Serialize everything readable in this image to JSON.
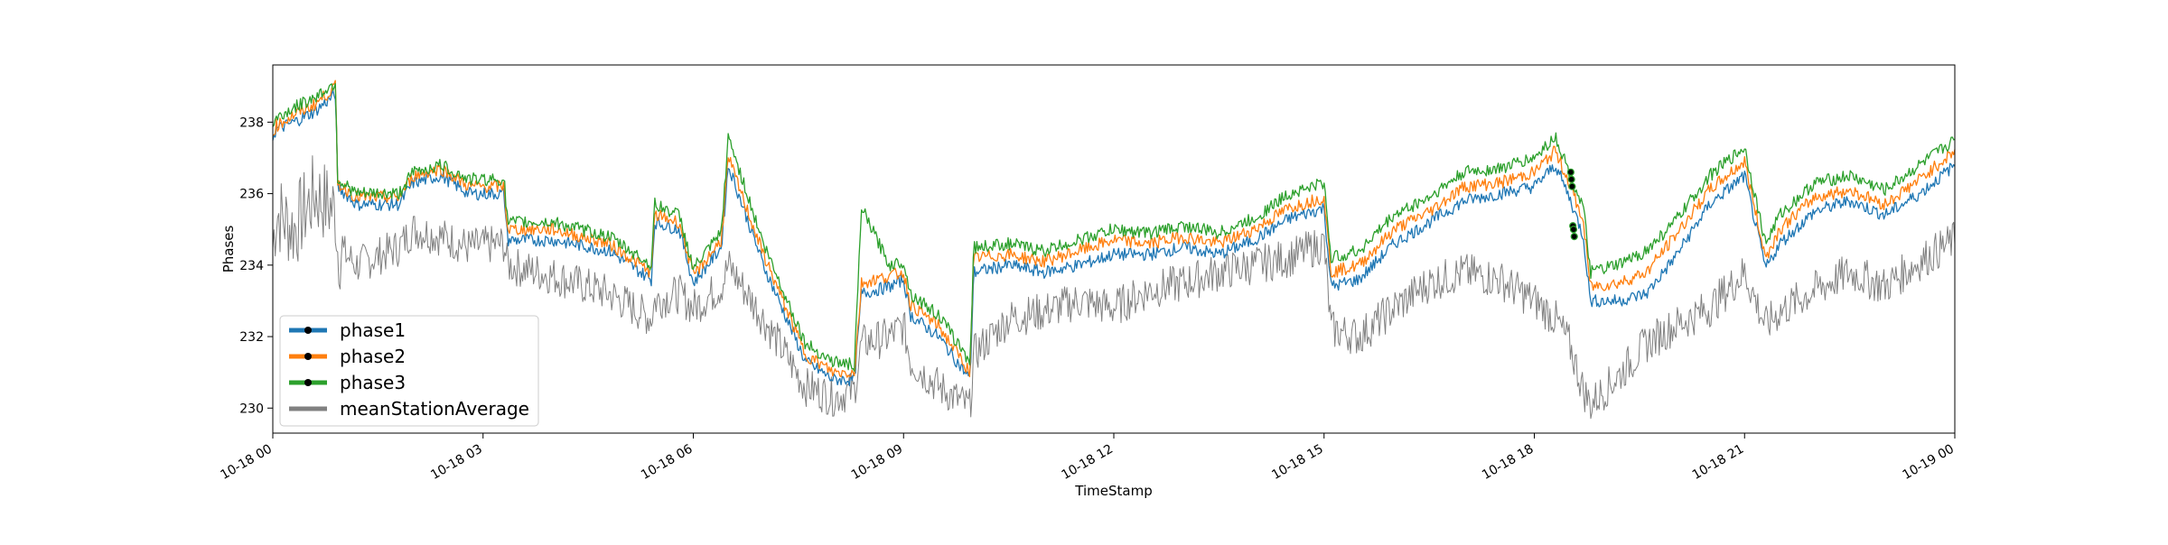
{
  "chart_data": {
    "type": "line",
    "title": "",
    "xlabel": "TimeStamp",
    "ylabel": "Phases",
    "x_range": [
      "10-18 00",
      "10-19 00"
    ],
    "x_ticks": [
      "10-18 00",
      "10-18 03",
      "10-18 06",
      "10-18 09",
      "10-18 12",
      "10-18 15",
      "10-18 18",
      "10-18 21",
      "10-19 00"
    ],
    "x_tick_hours": [
      0,
      3,
      6,
      9,
      12,
      15,
      18,
      21,
      24
    ],
    "ylim": [
      229.3,
      239.6
    ],
    "y_ticks": [
      230,
      232,
      234,
      236,
      238
    ],
    "grid": false,
    "legend": {
      "placement": "lower-left"
    },
    "x_hours": [
      0,
      0.05,
      0.3,
      0.6,
      0.9,
      0.92,
      1.2,
      1.8,
      2.0,
      2.4,
      2.8,
      3.3,
      3.35,
      4.0,
      4.8,
      5.4,
      5.45,
      5.8,
      6.0,
      6.4,
      6.5,
      7.0,
      7.6,
      8.0,
      8.3,
      8.4,
      8.8,
      9.0,
      9.1,
      9.5,
      9.95,
      10.0,
      10.5,
      11.0,
      11.5,
      12.0,
      12.5,
      13.0,
      13.5,
      14.0,
      14.5,
      15.0,
      15.1,
      15.5,
      16.0,
      16.5,
      17.0,
      17.5,
      18.0,
      18.3,
      18.5,
      18.7,
      18.8,
      19.2,
      19.6,
      20.0,
      20.5,
      21.0,
      21.3,
      21.5,
      22.0,
      22.5,
      23.0,
      23.5,
      24.0
    ],
    "series": [
      {
        "name": "phase1",
        "color": "#1f77b4",
        "values": [
          237.6,
          237.8,
          238.0,
          238.3,
          238.8,
          236.2,
          235.7,
          235.7,
          236.3,
          236.5,
          236.0,
          236.0,
          234.7,
          234.7,
          234.4,
          233.6,
          235.2,
          235.0,
          233.5,
          234.5,
          236.8,
          234.0,
          231.3,
          230.8,
          230.8,
          233.2,
          233.4,
          233.6,
          232.6,
          232.0,
          230.8,
          233.8,
          234.0,
          233.8,
          234.0,
          234.3,
          234.3,
          234.5,
          234.3,
          234.7,
          235.3,
          235.6,
          233.4,
          233.6,
          234.6,
          235.2,
          235.8,
          236.0,
          236.2,
          236.8,
          235.9,
          234.8,
          233.0,
          233.0,
          233.2,
          234.2,
          235.7,
          236.5,
          233.9,
          234.6,
          235.5,
          235.8,
          235.4,
          236.0,
          236.8
        ]
      },
      {
        "name": "phase2",
        "color": "#ff7f0e",
        "values": [
          237.7,
          237.9,
          238.2,
          238.5,
          239.0,
          236.3,
          235.9,
          235.9,
          236.5,
          236.7,
          236.2,
          236.2,
          235.0,
          235.0,
          234.6,
          233.8,
          235.4,
          235.2,
          233.7,
          234.7,
          237.0,
          234.3,
          231.5,
          231.0,
          231.0,
          233.5,
          233.7,
          233.8,
          232.9,
          232.3,
          231.0,
          234.2,
          234.3,
          234.1,
          234.4,
          234.7,
          234.6,
          234.8,
          234.6,
          235.0,
          235.6,
          235.9,
          233.8,
          234.0,
          235.0,
          235.5,
          236.2,
          236.3,
          236.6,
          237.2,
          236.3,
          235.2,
          233.4,
          233.5,
          233.8,
          234.8,
          236.1,
          236.9,
          234.2,
          235.0,
          235.9,
          236.1,
          235.7,
          236.4,
          237.2
        ]
      },
      {
        "name": "phase3",
        "color": "#2ca02c",
        "values": [
          237.9,
          238.1,
          238.4,
          238.7,
          239.1,
          236.4,
          236.0,
          236.0,
          236.6,
          236.8,
          236.4,
          236.4,
          235.2,
          235.2,
          234.8,
          234.0,
          235.7,
          235.4,
          233.9,
          234.9,
          237.6,
          234.6,
          231.8,
          231.3,
          231.2,
          235.6,
          234.0,
          234.1,
          233.2,
          232.6,
          231.3,
          234.5,
          234.6,
          234.4,
          234.7,
          235.0,
          234.9,
          235.1,
          234.9,
          235.3,
          236.0,
          236.3,
          234.2,
          234.4,
          235.4,
          235.9,
          236.6,
          236.7,
          237.0,
          237.6,
          236.6,
          235.6,
          233.8,
          234.0,
          234.4,
          235.2,
          236.5,
          237.3,
          234.6,
          235.4,
          236.3,
          236.5,
          236.1,
          236.8,
          237.5
        ]
      },
      {
        "name": "meanStationAverage",
        "color": "#808080",
        "values": [
          234.5,
          235.5,
          235.0,
          236.0,
          235.5,
          234.5,
          234.0,
          234.5,
          235.0,
          234.8,
          234.5,
          234.6,
          234.0,
          233.7,
          233.2,
          232.5,
          233.0,
          233.2,
          232.8,
          233.4,
          234.0,
          232.5,
          230.6,
          230.3,
          230.5,
          231.8,
          232.0,
          232.3,
          231.3,
          230.6,
          230.0,
          231.5,
          232.5,
          232.7,
          233.0,
          232.8,
          233.3,
          233.5,
          233.8,
          234.0,
          234.2,
          234.6,
          232.2,
          232.0,
          232.8,
          233.5,
          233.8,
          233.6,
          233.0,
          232.5,
          231.8,
          230.5,
          230.1,
          230.9,
          231.8,
          232.3,
          232.8,
          233.8,
          232.3,
          232.7,
          233.3,
          233.8,
          233.4,
          234.1,
          234.7
        ]
      }
    ],
    "markers": {
      "x_hours": [
        18.52,
        18.53,
        18.54,
        18.55,
        18.56,
        18.57
      ],
      "values": [
        236.6,
        236.4,
        236.2,
        235.1,
        235.0,
        234.8
      ]
    }
  }
}
